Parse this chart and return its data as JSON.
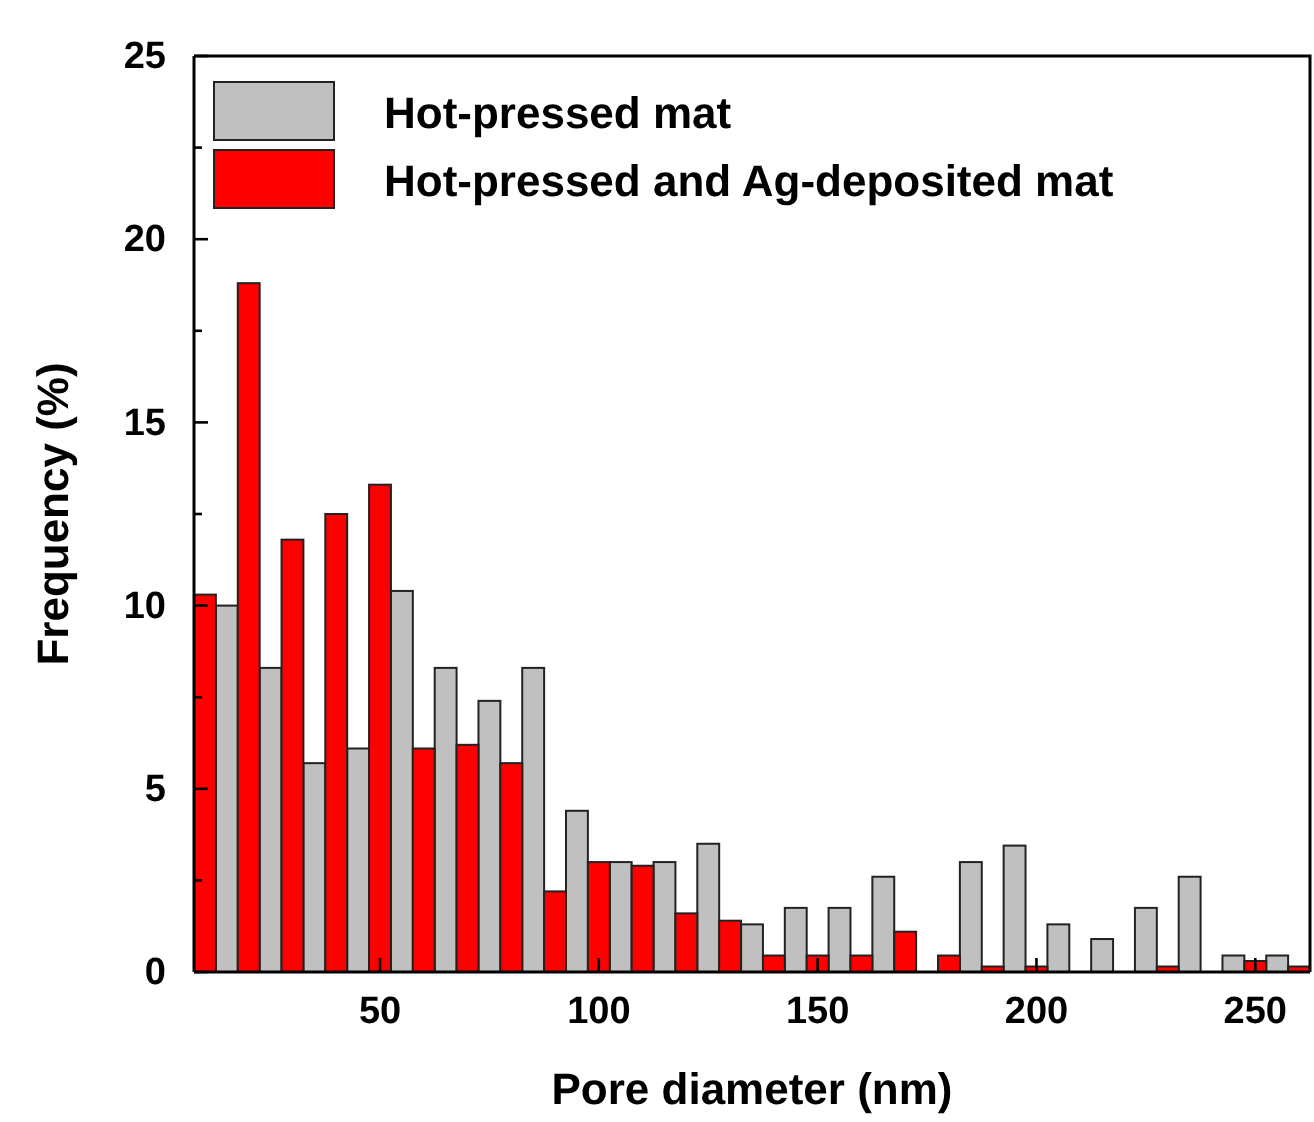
{
  "chart_data": {
    "type": "bar",
    "xlabel": "Pore diameter (nm)",
    "ylabel": "Frequency (%)",
    "xlim": [
      7.5,
      262.5
    ],
    "xticks": [
      50,
      100,
      150,
      200,
      250
    ],
    "ylim": [
      0,
      25
    ],
    "yticks": [
      0,
      {
        "value": 2.5,
        "label": null
      },
      5,
      {
        "value": 7.5,
        "label": null
      },
      10,
      {
        "value": 12.5,
        "label": null
      },
      15,
      {
        "value": 17.5,
        "label": null
      },
      20,
      {
        "value": 22.5,
        "label": null
      },
      25
    ],
    "legend": "top left",
    "series": [
      {
        "name": "Hot-pressed mat",
        "color": "#c0c0c0",
        "x": [
          15,
          25,
          35,
          45,
          55,
          65,
          75,
          85,
          95,
          105,
          115,
          125,
          135,
          145,
          155,
          165,
          175,
          185,
          195,
          205,
          215,
          225,
          235,
          245,
          255
        ],
        "values": [
          10.0,
          8.3,
          5.7,
          6.1,
          10.4,
          8.3,
          7.4,
          8.3,
          4.4,
          3.0,
          3.0,
          3.5,
          1.3,
          1.75,
          1.75,
          2.6,
          0,
          3.0,
          3.45,
          1.3,
          0.9,
          1.75,
          2.6,
          0.45,
          0.45
        ]
      },
      {
        "name": "Hot-pressed and Ag-deposited mat",
        "color": "#ff0000",
        "x": [
          10,
          20,
          30,
          40,
          50,
          60,
          70,
          80,
          90,
          100,
          110,
          120,
          130,
          140,
          150,
          160,
          170,
          180,
          190,
          200,
          210,
          220,
          230,
          240,
          250,
          260
        ],
        "values": [
          10.3,
          18.8,
          11.8,
          12.5,
          13.3,
          6.1,
          6.2,
          5.7,
          2.2,
          3.0,
          2.9,
          1.6,
          1.4,
          0.45,
          0.45,
          0.45,
          1.1,
          0.45,
          0.15,
          0.15,
          0,
          0,
          0.15,
          0,
          0.3,
          0.15
        ]
      }
    ]
  }
}
